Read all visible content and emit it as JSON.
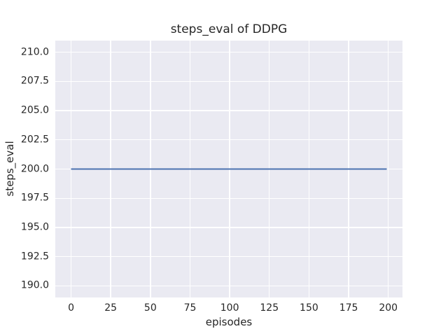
{
  "chart_data": {
    "type": "line",
    "title": "steps_eval of DDPG",
    "xlabel": "episodes",
    "ylabel": "steps_eval",
    "xlim": [
      -9.95,
      208.95
    ],
    "ylim": [
      189.0,
      211.0
    ],
    "xticks": [
      0,
      25,
      50,
      75,
      100,
      125,
      150,
      175,
      200
    ],
    "xtick_labels": [
      "0",
      "25",
      "50",
      "75",
      "100",
      "125",
      "150",
      "175",
      "200"
    ],
    "yticks": [
      190.0,
      192.5,
      195.0,
      197.5,
      200.0,
      202.5,
      205.0,
      207.5,
      210.0
    ],
    "ytick_labels": [
      "190.0",
      "192.5",
      "195.0",
      "197.5",
      "200.0",
      "202.5",
      "205.0",
      "207.5",
      "210.0"
    ],
    "grid": true,
    "legend": "none",
    "series": [
      {
        "name": "DDPG steps_eval",
        "color": "#4c72b0",
        "line_width": 2,
        "x": [
          0,
          199
        ],
        "y": [
          200,
          200
        ]
      }
    ],
    "colors": {
      "figure_bg": "#ffffff",
      "plot_bg": "#eaeaf2",
      "grid": "#ffffff",
      "text": "#262626"
    }
  }
}
